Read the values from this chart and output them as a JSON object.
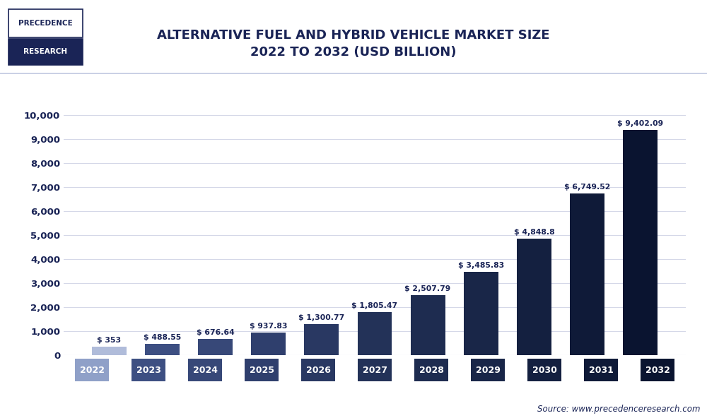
{
  "title": "ALTERNATIVE FUEL AND HYBRID VEHICLE MARKET SIZE\n2022 TO 2032 (USD BILLION)",
  "categories": [
    "2022",
    "2023",
    "2024",
    "2025",
    "2026",
    "2027",
    "2028",
    "2029",
    "2030",
    "2031",
    "2032"
  ],
  "values": [
    353,
    488.55,
    676.64,
    937.83,
    1300.77,
    1805.47,
    2507.79,
    3485.83,
    4848.8,
    6749.52,
    9402.09
  ],
  "labels": [
    "$ 353",
    "$ 488.55",
    "$ 676.64",
    "$ 937.83",
    "$ 1,300.77",
    "$ 1,805.47",
    "$ 2,507.79",
    "$ 3,485.83",
    "$ 4,848.8",
    "$ 6,749.52",
    "$ 9,402.09"
  ],
  "bar_colors": [
    "#b0bcda",
    "#3d4f82",
    "#374878",
    "#2f3f6d",
    "#293862",
    "#233258",
    "#1e2c50",
    "#192648",
    "#142040",
    "#0f1a38",
    "#0a1430"
  ],
  "xtick_colors": [
    "#8fa0c8",
    "#3d4f82",
    "#374878",
    "#2f3f6d",
    "#293862",
    "#233258",
    "#1e2c50",
    "#192648",
    "#142040",
    "#0f1a38",
    "#0a1430"
  ],
  "title_color": "#1a2456",
  "tick_label_color": "#1a2456",
  "value_label_color": "#1a2456",
  "background_color": "#ffffff",
  "plot_background_color": "#ffffff",
  "grid_color": "#d5d8e8",
  "ylim": [
    0,
    10800
  ],
  "yticks": [
    0,
    1000,
    2000,
    3000,
    4000,
    5000,
    6000,
    7000,
    8000,
    9000,
    10000
  ],
  "source_text": "Source: www.precedenceresearch.com",
  "logo_line1": "PRECEDENCE",
  "logo_line2": "RESEARCH",
  "logo_color": "#1a2456"
}
